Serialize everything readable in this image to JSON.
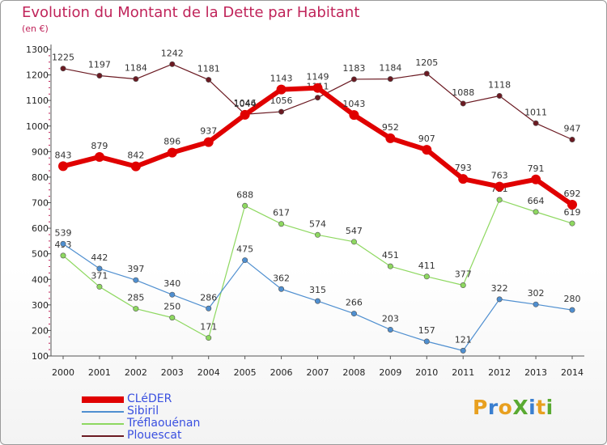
{
  "title": "Evolution du Montant de la Dette par Habitant",
  "subtitle": "(en €)",
  "logo": {
    "text": "ProXiti",
    "letters": [
      {
        "ch": "P",
        "color": "#e8a020"
      },
      {
        "ch": "r",
        "color": "#3a7fd0"
      },
      {
        "ch": "o",
        "color": "#e8a020"
      },
      {
        "ch": "X",
        "color": "#5aaa32"
      },
      {
        "ch": "i",
        "color": "#3a7fd0"
      },
      {
        "ch": "t",
        "color": "#e8a020"
      },
      {
        "ch": "i",
        "color": "#5aaa32"
      }
    ]
  },
  "chart_data": {
    "type": "line",
    "title": "Evolution du Montant de la Dette par Habitant",
    "subtitle": "(en €)",
    "xlabel": "",
    "ylabel": "",
    "x": [
      "2000",
      "2001",
      "2002",
      "2003",
      "2004",
      "2005",
      "2006",
      "2007",
      "2008",
      "2009",
      "2010",
      "2011",
      "2012",
      "2013",
      "2014"
    ],
    "ylim": [
      100,
      1300
    ],
    "yticks": [
      100,
      200,
      300,
      400,
      500,
      600,
      700,
      800,
      900,
      1000,
      1100,
      1200,
      1300
    ],
    "grid": false,
    "legend_position": "bottom-left",
    "series": [
      {
        "name": "CLéDER",
        "color": "#e00000",
        "width": 6,
        "values": [
          843,
          879,
          842,
          896,
          937,
          1044,
          1143,
          1149,
          1043,
          952,
          907,
          793,
          763,
          791,
          692
        ]
      },
      {
        "name": "Sibiril",
        "color": "#4f8fd0",
        "width": 1.2,
        "values": [
          539,
          442,
          397,
          340,
          286,
          475,
          362,
          315,
          266,
          203,
          157,
          121,
          322,
          302,
          280
        ]
      },
      {
        "name": "Tréflaouénan",
        "color": "#8ed860",
        "width": 1.2,
        "values": [
          493,
          371,
          285,
          250,
          171,
          688,
          617,
          574,
          547,
          451,
          411,
          377,
          711,
          664,
          619
        ]
      },
      {
        "name": "Plouescat",
        "color": "#6b1a22",
        "width": 1.2,
        "values": [
          1225,
          1197,
          1184,
          1242,
          1181,
          1046,
          1056,
          1111,
          1183,
          1184,
          1205,
          1088,
          1118,
          1011,
          947
        ]
      }
    ]
  }
}
